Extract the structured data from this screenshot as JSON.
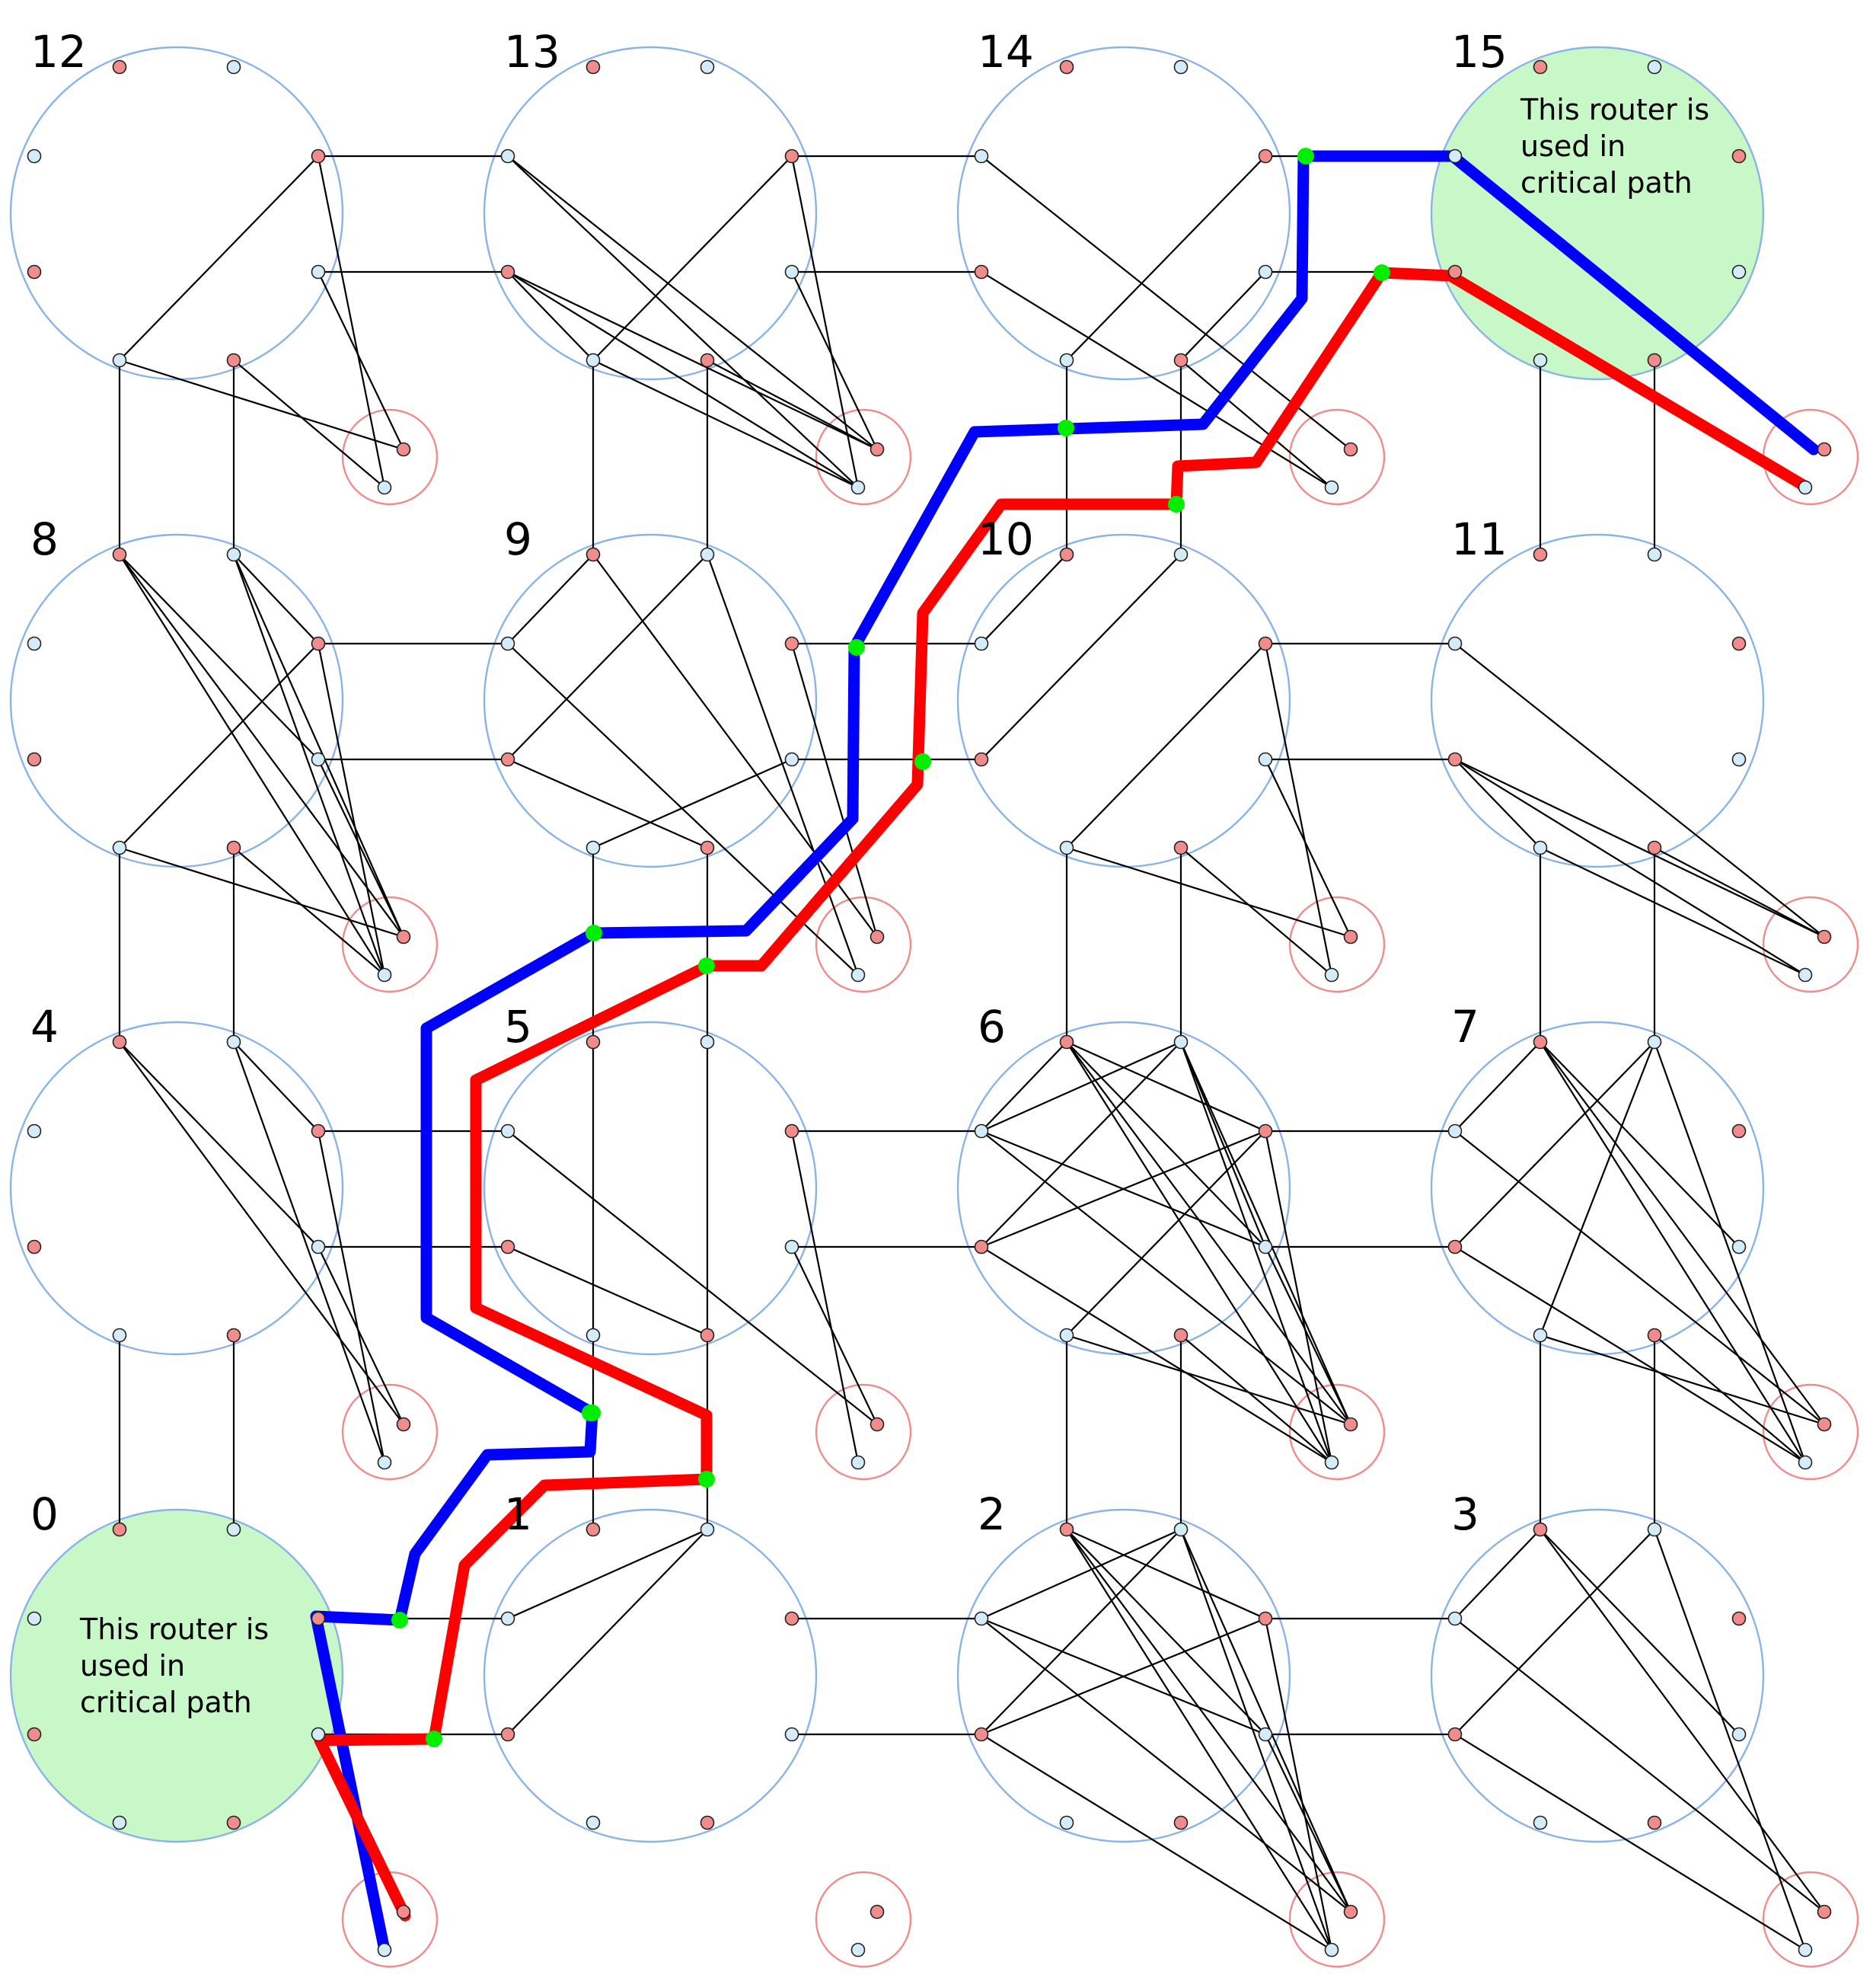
{
  "routers": [
    {
      "id": "0",
      "label": "0",
      "critical": true
    },
    {
      "id": "1",
      "label": "1",
      "critical": false
    },
    {
      "id": "2",
      "label": "2",
      "critical": false
    },
    {
      "id": "3",
      "label": "3",
      "critical": false
    },
    {
      "id": "4",
      "label": "4",
      "critical": false
    },
    {
      "id": "5",
      "label": "5",
      "critical": false
    },
    {
      "id": "6",
      "label": "6",
      "critical": false
    },
    {
      "id": "7",
      "label": "7",
      "critical": false
    },
    {
      "id": "8",
      "label": "8",
      "critical": false
    },
    {
      "id": "9",
      "label": "9",
      "critical": false
    },
    {
      "id": "10",
      "label": "10",
      "critical": false
    },
    {
      "id": "11",
      "label": "11",
      "critical": false
    },
    {
      "id": "12",
      "label": "12",
      "critical": false
    },
    {
      "id": "13",
      "label": "13",
      "critical": false
    },
    {
      "id": "14",
      "label": "14",
      "critical": false
    },
    {
      "id": "15",
      "label": "15",
      "critical": true
    }
  ],
  "annotations": {
    "critical_note_line1": "This router is",
    "critical_note_line2": "used in",
    "critical_note_line3": "critical path"
  },
  "colors": {
    "router_outline": "#8ab4e8",
    "local_outline": "#f08c8c",
    "port_blue": "#d4ecf7",
    "port_red": "#f08c8c",
    "critical_fill": "#c8f8c8",
    "path_blue": "#0000ff",
    "path_red": "#ff0000",
    "path_node": "#00ee00",
    "edge": "#000000"
  }
}
